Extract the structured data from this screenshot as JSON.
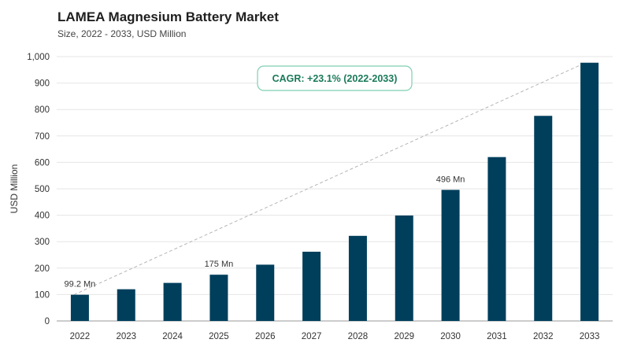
{
  "chart_data": {
    "type": "bar",
    "title": "LAMEA Magnesium Battery Market",
    "subtitle": "Size, 2022 - 2033, USD Million",
    "ylabel": "USD Million",
    "xlabel": "",
    "ylim": [
      0,
      1000
    ],
    "yticks": [
      "0",
      "100",
      "200",
      "300",
      "400",
      "500",
      "600",
      "700",
      "800",
      "900",
      "1,000"
    ],
    "categories": [
      "2022",
      "2023",
      "2024",
      "2025",
      "2026",
      "2027",
      "2028",
      "2029",
      "2030",
      "2031",
      "2032",
      "2033"
    ],
    "values": [
      99.2,
      120,
      144,
      175,
      213,
      262,
      322,
      399,
      496,
      620,
      776,
      977
    ],
    "data_labels": [
      {
        "index": 0,
        "text": "99.2 Mn"
      },
      {
        "index": 3,
        "text": "175 Mn"
      },
      {
        "index": 8,
        "text": "496 Mn"
      }
    ],
    "annotation": "CAGR: +23.1% (2022-2033)",
    "grid": true,
    "colors": {
      "bar": "#003f5c",
      "cagr_border": "#7fcfb0",
      "cagr_text": "#1a7a5a",
      "trend": "#b5b5b5"
    }
  }
}
